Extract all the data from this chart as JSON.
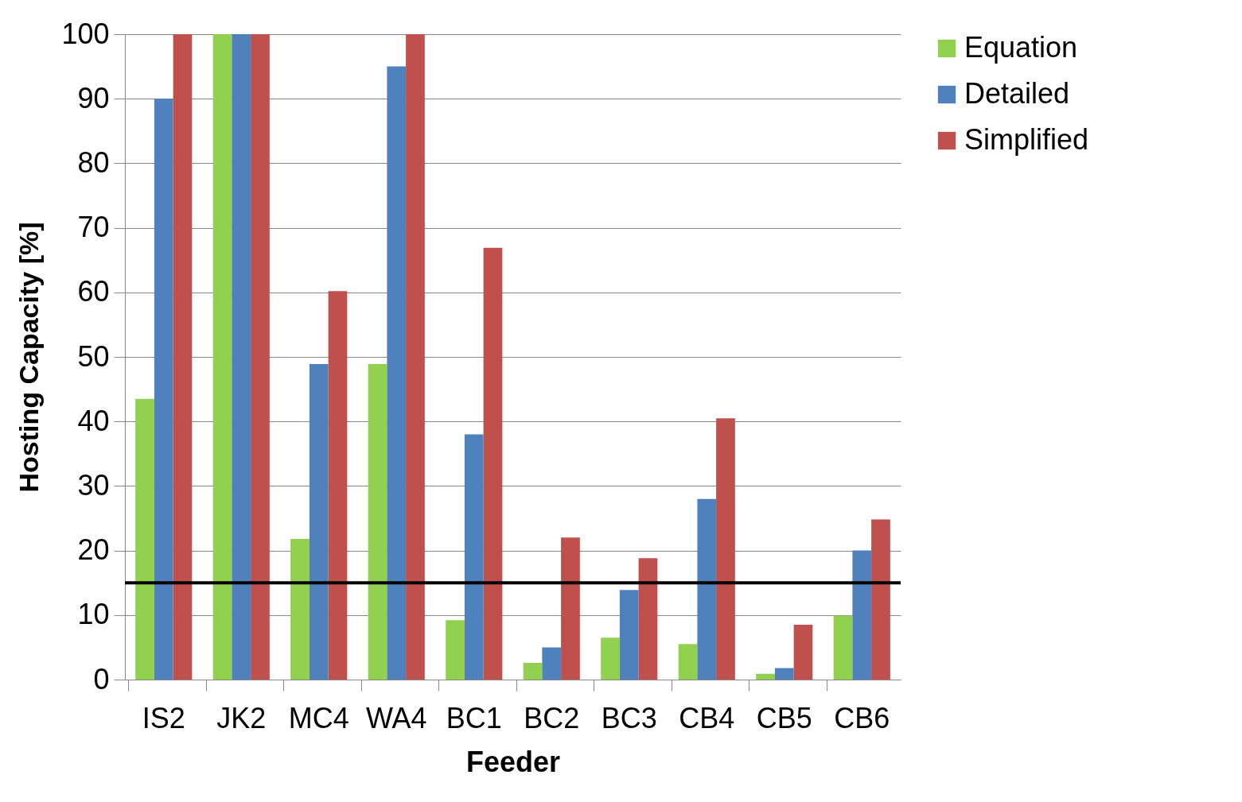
{
  "chart_data": {
    "type": "bar",
    "xlabel": "Feeder",
    "ylabel": "Hosting Capacity [%]",
    "categories": [
      "IS2",
      "JK2",
      "MC4",
      "WA4",
      "BC1",
      "BC2",
      "BC3",
      "CB4",
      "CB5",
      "CB6"
    ],
    "series": [
      {
        "name": "Equation",
        "color": "#92d050",
        "values": [
          43.5,
          100,
          21.8,
          48.9,
          9.2,
          2.6,
          6.5,
          5.5,
          0.9,
          9.9
        ]
      },
      {
        "name": "Detailed",
        "color": "#4f81bd",
        "values": [
          90,
          100,
          48.9,
          95,
          38,
          5,
          13.9,
          28,
          1.8,
          20
        ]
      },
      {
        "name": "Simplified",
        "color": "#c0504d",
        "values": [
          100,
          100,
          60.2,
          100,
          66.9,
          22,
          18.8,
          40.5,
          8.5,
          24.8
        ]
      }
    ],
    "ylim": [
      0,
      100
    ],
    "yticks": [
      0,
      10,
      20,
      30,
      40,
      50,
      60,
      70,
      80,
      90,
      100
    ],
    "grid": "y",
    "legend": "right",
    "ref_lines": [
      {
        "axis": "y",
        "value": 15,
        "color": "#000000"
      }
    ]
  }
}
